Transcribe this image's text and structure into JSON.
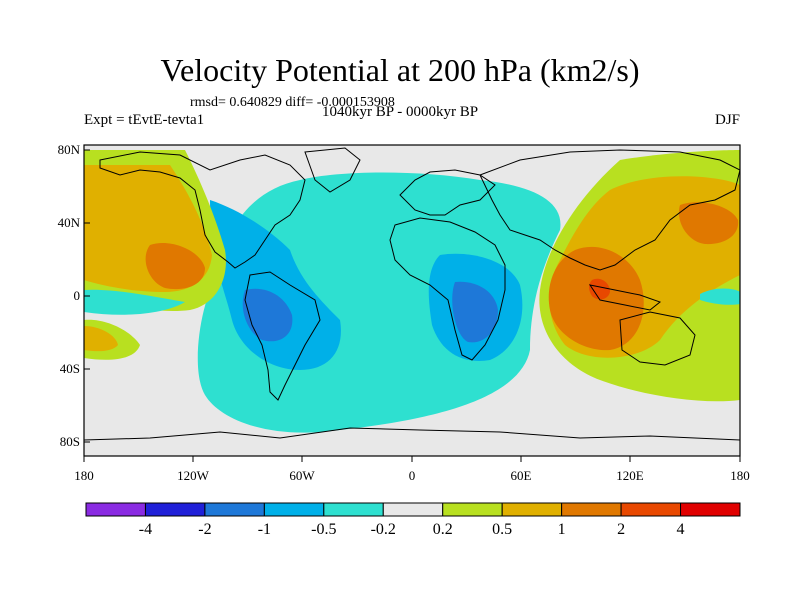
{
  "title": "Velocity Potential at 200 hPa (km2/s)",
  "stats": "rmsd= 0.640829 diff= -0.000153908",
  "experiment": "Expt = tEvtE-tevta1",
  "period": "1040kyr BP - 0000kyr BP",
  "season": "DJF",
  "map": {
    "lat_labels": [
      "80N",
      "40N",
      "0",
      "40S",
      "80S"
    ],
    "lon_labels": [
      "180",
      "120W",
      "60W",
      "0",
      "60E",
      "120E",
      "180"
    ]
  },
  "colorbar": {
    "labels": [
      "-4",
      "-2",
      "-1",
      "-0.5",
      "-0.2",
      "0.2",
      "0.5",
      "1",
      "2",
      "4"
    ],
    "colors": [
      "#8a2be2",
      "#2020d8",
      "#1e78d8",
      "#00b0e8",
      "#2ee0d0",
      "#e8e8e8",
      "#b8e020",
      "#e0b000",
      "#e07800",
      "#e84800",
      "#e00000"
    ]
  }
}
